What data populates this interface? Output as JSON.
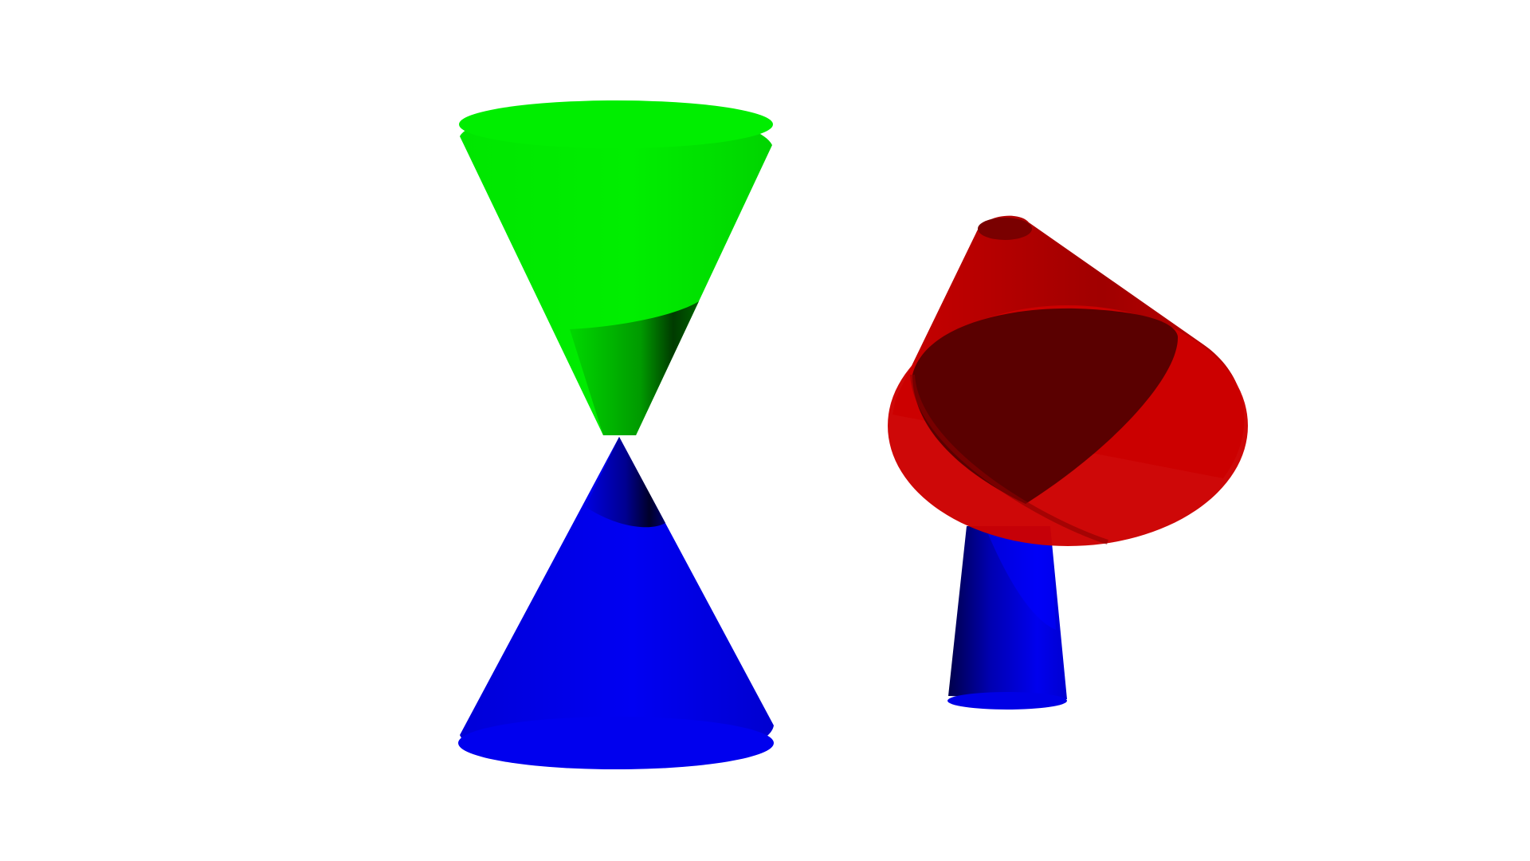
{
  "scene": {
    "background": "#ffffff",
    "objects": [
      {
        "id": "double-cone",
        "parts": [
          {
            "name": "upper-nappe",
            "shape": "cone",
            "color": "#00ee00",
            "orientation": "opening-up"
          },
          {
            "name": "lower-nappe",
            "shape": "cone",
            "color": "#0000ee",
            "orientation": "opening-down"
          }
        ]
      },
      {
        "id": "tilted-cone-pair",
        "parts": [
          {
            "name": "tilted-cone",
            "shape": "cone",
            "color": "#cc0000",
            "orientation": "tilted"
          },
          {
            "name": "stem-cone",
            "shape": "truncated-cone",
            "color": "#0000ee",
            "orientation": "opening-down"
          }
        ]
      }
    ]
  }
}
